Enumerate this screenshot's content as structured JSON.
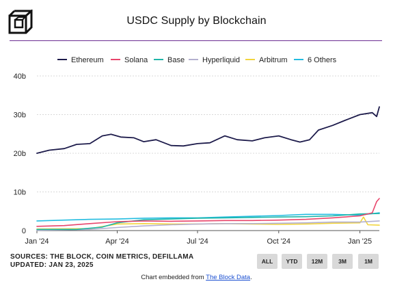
{
  "header": {
    "logo_name": "the-block-logo",
    "title": "USDC Supply by Blockchain"
  },
  "colors": {
    "accent_divider": "#6a2c91",
    "Ethereum": "#1c1a4a",
    "Solana": "#e8456b",
    "Base": "#1fb5a8",
    "Hyperliquid": "#b3b0cf",
    "Arbitrum": "#f2d43d",
    "6 Others": "#22bce0"
  },
  "chart_data": {
    "type": "line",
    "title": "USDC Supply by Blockchain",
    "x_unit": "date",
    "y_unit": "billions of USD",
    "xlim": [
      "2024-01-01",
      "2025-01-23"
    ],
    "ylim": [
      0,
      40
    ],
    "y_ticks": [
      0,
      10,
      20,
      30,
      40
    ],
    "y_tick_labels": [
      "0",
      "10b",
      "20b",
      "30b",
      "40b"
    ],
    "x_ticks": [
      "2024-01-01",
      "2024-04-01",
      "2024-07-01",
      "2024-10-01",
      "2025-01-01"
    ],
    "x_tick_labels": [
      "Jan '24",
      "Apr '24",
      "Jul '24",
      "Oct '24",
      "Jan '25"
    ],
    "legend_position": "top",
    "grid": "horizontal",
    "series": [
      {
        "name": "Ethereum",
        "points": [
          [
            "2024-01-01",
            20.0
          ],
          [
            "2024-01-15",
            20.8
          ],
          [
            "2024-02-01",
            21.2
          ],
          [
            "2024-02-15",
            22.3
          ],
          [
            "2024-03-01",
            22.5
          ],
          [
            "2024-03-15",
            24.5
          ],
          [
            "2024-03-25",
            24.9
          ],
          [
            "2024-04-05",
            24.2
          ],
          [
            "2024-04-20",
            24.0
          ],
          [
            "2024-05-01",
            23.0
          ],
          [
            "2024-05-15",
            23.5
          ],
          [
            "2024-06-01",
            22.0
          ],
          [
            "2024-06-15",
            21.9
          ],
          [
            "2024-07-01",
            22.5
          ],
          [
            "2024-07-15",
            22.7
          ],
          [
            "2024-08-01",
            24.5
          ],
          [
            "2024-08-15",
            23.5
          ],
          [
            "2024-09-01",
            23.2
          ],
          [
            "2024-09-15",
            24.0
          ],
          [
            "2024-10-01",
            24.5
          ],
          [
            "2024-10-15",
            23.5
          ],
          [
            "2024-10-25",
            22.9
          ],
          [
            "2024-11-05",
            23.5
          ],
          [
            "2024-11-15",
            26.0
          ],
          [
            "2024-12-01",
            27.2
          ],
          [
            "2024-12-15",
            28.5
          ],
          [
            "2025-01-01",
            30.0
          ],
          [
            "2025-01-15",
            30.5
          ],
          [
            "2025-01-20",
            29.5
          ],
          [
            "2025-01-23",
            32.0
          ]
        ]
      },
      {
        "name": "Solana",
        "points": [
          [
            "2024-01-01",
            1.1
          ],
          [
            "2024-02-01",
            1.3
          ],
          [
            "2024-03-01",
            1.8
          ],
          [
            "2024-04-01",
            2.3
          ],
          [
            "2024-05-01",
            2.5
          ],
          [
            "2024-06-01",
            2.4
          ],
          [
            "2024-07-01",
            2.5
          ],
          [
            "2024-08-01",
            2.6
          ],
          [
            "2024-09-01",
            2.6
          ],
          [
            "2024-10-01",
            2.7
          ],
          [
            "2024-11-01",
            2.9
          ],
          [
            "2024-12-01",
            3.3
          ],
          [
            "2025-01-01",
            3.8
          ],
          [
            "2025-01-15",
            4.6
          ],
          [
            "2025-01-20",
            7.5
          ],
          [
            "2025-01-23",
            8.3
          ]
        ]
      },
      {
        "name": "Base",
        "points": [
          [
            "2024-01-01",
            0.3
          ],
          [
            "2024-02-15",
            0.3
          ],
          [
            "2024-03-15",
            0.9
          ],
          [
            "2024-04-01",
            2.0
          ],
          [
            "2024-05-01",
            2.8
          ],
          [
            "2024-06-01",
            3.0
          ],
          [
            "2024-07-01",
            3.2
          ],
          [
            "2024-08-01",
            3.3
          ],
          [
            "2024-09-01",
            3.4
          ],
          [
            "2024-10-01",
            3.5
          ],
          [
            "2024-11-01",
            3.6
          ],
          [
            "2024-12-01",
            3.8
          ],
          [
            "2025-01-01",
            4.3
          ],
          [
            "2025-01-23",
            4.4
          ]
        ]
      },
      {
        "name": "Hyperliquid",
        "points": [
          [
            "2024-01-01",
            0.1
          ],
          [
            "2024-03-01",
            0.3
          ],
          [
            "2024-04-01",
            0.8
          ],
          [
            "2024-05-01",
            1.2
          ],
          [
            "2024-06-01",
            1.5
          ],
          [
            "2024-07-01",
            1.7
          ],
          [
            "2024-08-01",
            1.8
          ],
          [
            "2024-09-01",
            1.8
          ],
          [
            "2024-10-01",
            1.9
          ],
          [
            "2024-11-01",
            2.0
          ],
          [
            "2024-12-01",
            2.2
          ],
          [
            "2025-01-01",
            2.2
          ],
          [
            "2025-01-23",
            2.5
          ]
        ]
      },
      {
        "name": "Arbitrum",
        "points": [
          [
            "2024-01-01",
            0.4
          ],
          [
            "2024-03-01",
            0.5
          ],
          [
            "2024-04-01",
            1.7
          ],
          [
            "2024-05-01",
            1.8
          ],
          [
            "2024-06-01",
            1.7
          ],
          [
            "2024-07-01",
            1.7
          ],
          [
            "2024-08-01",
            1.8
          ],
          [
            "2024-09-01",
            1.7
          ],
          [
            "2024-10-01",
            1.6
          ],
          [
            "2024-11-01",
            1.7
          ],
          [
            "2024-12-01",
            1.9
          ],
          [
            "2025-01-01",
            2.0
          ],
          [
            "2025-01-05",
            3.5
          ],
          [
            "2025-01-10",
            1.5
          ],
          [
            "2025-01-23",
            1.4
          ]
        ]
      },
      {
        "name": "6 Others",
        "points": [
          [
            "2024-01-01",
            2.5
          ],
          [
            "2024-02-01",
            2.7
          ],
          [
            "2024-03-01",
            2.9
          ],
          [
            "2024-04-01",
            3.0
          ],
          [
            "2024-05-01",
            3.2
          ],
          [
            "2024-06-01",
            3.3
          ],
          [
            "2024-07-01",
            3.3
          ],
          [
            "2024-08-01",
            3.5
          ],
          [
            "2024-09-01",
            3.7
          ],
          [
            "2024-10-01",
            3.9
          ],
          [
            "2024-11-01",
            4.2
          ],
          [
            "2024-12-01",
            4.2
          ],
          [
            "2025-01-01",
            4.0
          ],
          [
            "2025-01-23",
            4.6
          ]
        ]
      }
    ]
  },
  "footer": {
    "source_line1": "SOURCES: THE BLOCK, COIN METRICS, DEFILLAMA",
    "source_line2": "UPDATED: JAN 23, 2025",
    "buttons": [
      "ALL",
      "YTD",
      "12M",
      "3M",
      "1M"
    ],
    "embed_prefix": "Chart embedded from ",
    "embed_link": "The Block Data",
    "embed_suffix": "."
  }
}
